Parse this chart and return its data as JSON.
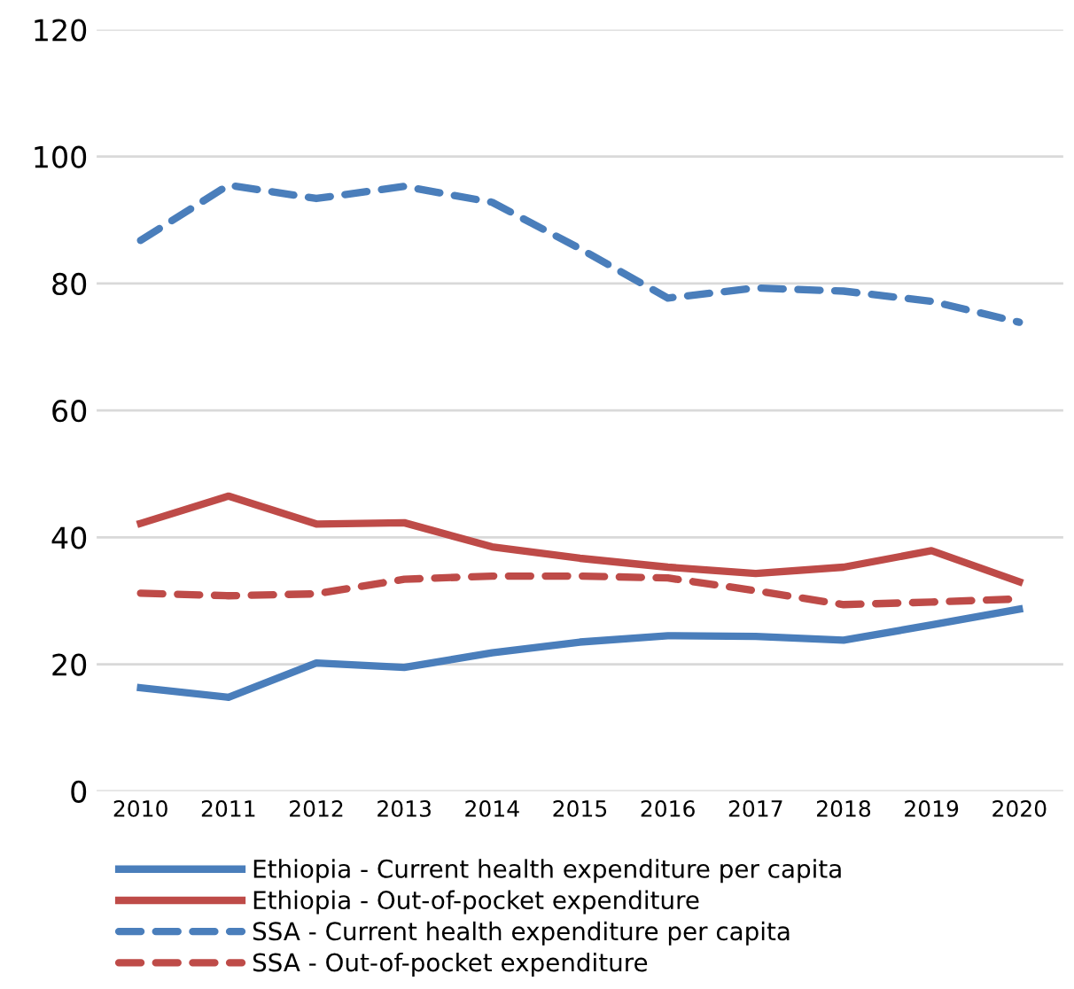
{
  "chart_data": {
    "type": "line",
    "categories": [
      "2010",
      "2011",
      "2012",
      "2013",
      "2014",
      "2015",
      "2016",
      "2017",
      "2018",
      "2019",
      "2020"
    ],
    "series": [
      {
        "name": "Ethiopia - Current health expenditure per capita",
        "color": "#4a7ebb",
        "line_style": "solid",
        "values": [
          16.3,
          14.8,
          20.2,
          19.5,
          21.8,
          23.5,
          24.5,
          24.4,
          23.8,
          26.2,
          28.7
        ]
      },
      {
        "name": "Ethiopia - Out-of-pocket expenditure",
        "color": "#be4b48",
        "line_style": "solid",
        "values": [
          42.2,
          46.5,
          42.1,
          42.3,
          38.5,
          36.7,
          35.3,
          34.3,
          35.3,
          37.9,
          33.0
        ]
      },
      {
        "name": "SSA - Current health expenditure per capita",
        "color": "#4a7ebb",
        "line_style": "dashed",
        "values": [
          86.8,
          95.5,
          93.4,
          95.3,
          92.8,
          85.5,
          77.7,
          79.3,
          78.8,
          77.2,
          73.9
        ]
      },
      {
        "name": "SSA - Out-of-pocket expenditure",
        "color": "#be4b48",
        "line_style": "dashed",
        "values": [
          31.2,
          30.8,
          31.1,
          33.4,
          33.9,
          33.9,
          33.6,
          31.6,
          29.4,
          29.8,
          30.3
        ]
      }
    ],
    "ylim": [
      0,
      120
    ],
    "yticks": [
      0,
      20,
      40,
      60,
      80,
      100,
      120
    ],
    "grid": "y",
    "legend": "bottom",
    "marker": "none"
  }
}
